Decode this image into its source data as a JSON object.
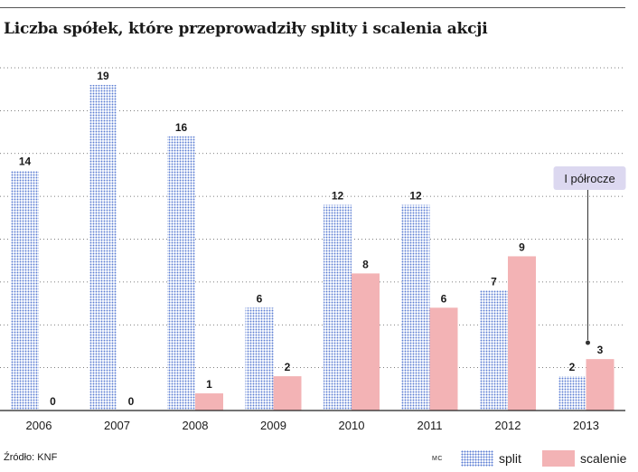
{
  "title": "Liczba spółek, które przeprowadziły splity i scalenia akcji",
  "source": "Źródło: KNF",
  "author": "MC",
  "annotation": "I półrocze",
  "colors": {
    "split": "#5b7dd3",
    "merge": "#f3b3b5",
    "grid": "#555555"
  },
  "chart_data": {
    "type": "bar",
    "title": "Liczba spółek, które przeprowadziły splity i scalenia akcji",
    "categories": [
      "2006",
      "2007",
      "2008",
      "2009",
      "2010",
      "2011",
      "2012",
      "2013"
    ],
    "series": [
      {
        "name": "split",
        "values": [
          14,
          19,
          16,
          6,
          12,
          12,
          7,
          2
        ]
      },
      {
        "name": "scalenie",
        "values": [
          0,
          0,
          1,
          2,
          8,
          6,
          9,
          3
        ]
      }
    ],
    "ylim": [
      0,
      20
    ],
    "grid": true,
    "legend_position": "bottom-right",
    "annotations": [
      {
        "text": "I półrocze",
        "category": "2013"
      }
    ]
  }
}
